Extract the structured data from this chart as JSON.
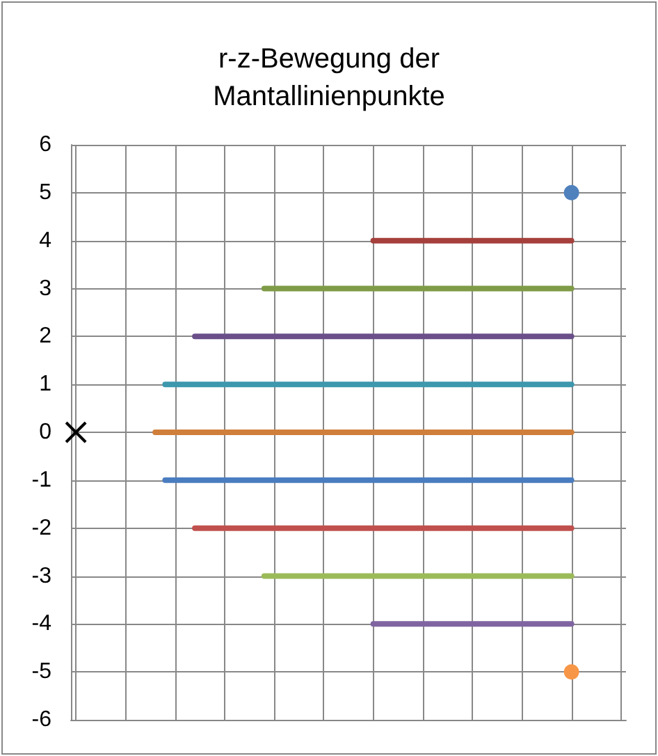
{
  "chart_data": {
    "type": "line",
    "title": "r-z-Bewegung der\nMantallinienpunkte",
    "categories": [
      null,
      null,
      null,
      null,
      null,
      null,
      null,
      null,
      null,
      null,
      null,
      null,
      null,
      null,
      null,
      null,
      null,
      null,
      null,
      null,
      null,
      null,
      null,
      null,
      null,
      null,
      null,
      null,
      null,
      null,
      null,
      null,
      null,
      null,
      null,
      null,
      null,
      null,
      null,
      null,
      null,
      null,
      null,
      null,
      null,
      null,
      null,
      null,
      null,
      null,
      null,
      null,
      null,
      null,
      null,
      null
    ],
    "ylim": [
      -6,
      6
    ],
    "yticks": [
      -6,
      -5,
      -4,
      -3,
      -2,
      -1,
      0,
      1,
      2,
      3,
      4,
      5,
      6
    ],
    "grid": true,
    "marker": "none",
    "line_style": "solid",
    "series": [
      {
        "marker": "circle",
        "color": "#4f81bd",
        "values": [
          null,
          null,
          null,
          null,
          null,
          null,
          null,
          null,
          null,
          null,
          null,
          null,
          null,
          null,
          null,
          null,
          null,
          null,
          null,
          null,
          null,
          null,
          null,
          null,
          null,
          null,
          null,
          null,
          null,
          null,
          null,
          null,
          null,
          null,
          null,
          null,
          null,
          null,
          null,
          null,
          null,
          null,
          null,
          null,
          null,
          null,
          null,
          null,
          null,
          null,
          5,
          null,
          null,
          null,
          null,
          null
        ]
      },
      {
        "color": "#a5403d",
        "values": [
          null,
          null,
          null,
          null,
          null,
          null,
          null,
          null,
          null,
          null,
          null,
          null,
          null,
          null,
          null,
          null,
          null,
          null,
          null,
          null,
          null,
          null,
          null,
          null,
          null,
          null,
          null,
          null,
          null,
          null,
          4,
          null,
          null,
          null,
          null,
          null,
          null,
          null,
          null,
          null,
          null,
          null,
          null,
          null,
          null,
          null,
          null,
          null,
          null,
          null,
          4,
          null,
          null,
          null,
          null,
          null
        ]
      },
      {
        "color": "#7f9b47",
        "values": [
          null,
          null,
          null,
          null,
          null,
          null,
          null,
          null,
          null,
          null,
          null,
          null,
          null,
          null,
          null,
          null,
          null,
          null,
          null,
          3,
          null,
          null,
          null,
          null,
          null,
          null,
          null,
          null,
          null,
          null,
          null,
          null,
          null,
          null,
          null,
          null,
          null,
          null,
          null,
          null,
          null,
          null,
          null,
          null,
          null,
          null,
          null,
          null,
          null,
          null,
          3,
          null,
          null,
          null,
          null,
          null
        ]
      },
      {
        "color": "#6a4f8a",
        "values": [
          null,
          null,
          null,
          null,
          null,
          null,
          null,
          null,
          null,
          null,
          null,
          null,
          2,
          null,
          null,
          null,
          null,
          null,
          null,
          null,
          null,
          null,
          null,
          null,
          null,
          null,
          null,
          null,
          null,
          null,
          null,
          null,
          null,
          null,
          null,
          null,
          null,
          null,
          null,
          null,
          null,
          null,
          null,
          null,
          null,
          null,
          null,
          null,
          null,
          null,
          2,
          null,
          null,
          null,
          null,
          null
        ]
      },
      {
        "color": "#3d97ad",
        "values": [
          null,
          null,
          null,
          null,
          null,
          null,
          null,
          null,
          null,
          1,
          null,
          null,
          null,
          null,
          null,
          null,
          null,
          null,
          null,
          null,
          null,
          null,
          null,
          null,
          null,
          null,
          null,
          null,
          null,
          null,
          null,
          null,
          null,
          null,
          null,
          null,
          null,
          null,
          null,
          null,
          null,
          null,
          null,
          null,
          null,
          null,
          null,
          null,
          null,
          null,
          1,
          null,
          null,
          null,
          null,
          null
        ]
      },
      {
        "color": "#d07f3a",
        "values": [
          null,
          null,
          null,
          null,
          null,
          null,
          null,
          null,
          0,
          null,
          null,
          null,
          null,
          null,
          null,
          null,
          null,
          null,
          null,
          null,
          null,
          null,
          null,
          null,
          null,
          null,
          null,
          null,
          null,
          null,
          null,
          null,
          null,
          null,
          null,
          null,
          null,
          null,
          null,
          null,
          null,
          null,
          null,
          null,
          null,
          null,
          null,
          null,
          null,
          null,
          0,
          null,
          null,
          null,
          null,
          null
        ]
      },
      {
        "color": "#4a7cc0",
        "values": [
          null,
          null,
          null,
          null,
          null,
          null,
          null,
          null,
          null,
          -1,
          null,
          null,
          null,
          null,
          null,
          null,
          null,
          null,
          null,
          null,
          null,
          null,
          null,
          null,
          null,
          null,
          null,
          null,
          null,
          null,
          null,
          null,
          null,
          null,
          null,
          null,
          null,
          null,
          null,
          null,
          null,
          null,
          null,
          null,
          null,
          null,
          null,
          null,
          null,
          null,
          -1,
          null,
          null,
          null,
          null,
          null
        ]
      },
      {
        "color": "#c0504d",
        "values": [
          null,
          null,
          null,
          null,
          null,
          null,
          null,
          null,
          null,
          null,
          null,
          null,
          -2,
          null,
          null,
          null,
          null,
          null,
          null,
          null,
          null,
          null,
          null,
          null,
          null,
          null,
          null,
          null,
          null,
          null,
          null,
          null,
          null,
          null,
          null,
          null,
          null,
          null,
          null,
          null,
          null,
          null,
          null,
          null,
          null,
          null,
          null,
          null,
          null,
          null,
          -2,
          null,
          null,
          null,
          null,
          null
        ]
      },
      {
        "color": "#9bbb59",
        "values": [
          null,
          null,
          null,
          null,
          null,
          null,
          null,
          null,
          null,
          null,
          null,
          null,
          null,
          null,
          null,
          null,
          null,
          null,
          null,
          -3,
          null,
          null,
          null,
          null,
          null,
          null,
          null,
          null,
          null,
          null,
          null,
          null,
          null,
          null,
          null,
          null,
          null,
          null,
          null,
          null,
          null,
          null,
          null,
          null,
          null,
          null,
          null,
          null,
          null,
          null,
          -3,
          null,
          null,
          null,
          null,
          null
        ]
      },
      {
        "color": "#8064a2",
        "values": [
          null,
          null,
          null,
          null,
          null,
          null,
          null,
          null,
          null,
          null,
          null,
          null,
          null,
          null,
          null,
          null,
          null,
          null,
          null,
          null,
          null,
          null,
          null,
          null,
          null,
          null,
          null,
          null,
          null,
          null,
          -4,
          null,
          null,
          null,
          null,
          null,
          null,
          null,
          null,
          null,
          null,
          null,
          null,
          null,
          null,
          null,
          null,
          null,
          null,
          null,
          -4,
          null,
          null,
          null,
          null,
          null
        ]
      },
      {
        "marker": "circle",
        "color": "#f79646",
        "values": [
          null,
          null,
          null,
          null,
          null,
          null,
          null,
          null,
          null,
          null,
          null,
          null,
          null,
          null,
          null,
          null,
          null,
          null,
          null,
          null,
          null,
          null,
          null,
          null,
          null,
          null,
          null,
          null,
          null,
          null,
          null,
          null,
          null,
          null,
          null,
          null,
          null,
          null,
          null,
          null,
          null,
          null,
          null,
          null,
          null,
          null,
          null,
          null,
          null,
          null,
          -5,
          null,
          null,
          null,
          null,
          null
        ]
      },
      {
        "marker": "cross",
        "color": "#000000",
        "values": [
          0,
          null,
          null,
          null,
          null,
          null,
          null,
          null,
          null,
          null,
          null,
          null,
          null,
          null,
          null,
          null,
          null,
          null,
          null,
          null,
          null,
          null,
          null,
          null,
          null,
          null,
          null,
          null,
          null,
          null,
          null,
          null,
          null,
          null,
          null,
          null,
          null,
          null,
          null,
          null,
          null,
          null,
          null,
          null,
          null,
          null,
          null,
          null,
          null,
          null,
          null,
          null,
          null,
          null,
          null,
          null
        ]
      }
    ]
  }
}
